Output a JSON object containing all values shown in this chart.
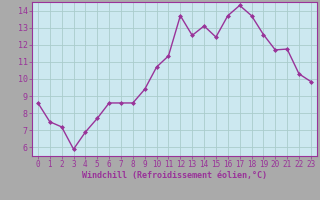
{
  "x": [
    0,
    1,
    2,
    3,
    4,
    5,
    6,
    7,
    8,
    9,
    10,
    11,
    12,
    13,
    14,
    15,
    16,
    17,
    18,
    19,
    20,
    21,
    22,
    23
  ],
  "y": [
    8.6,
    7.5,
    7.2,
    5.9,
    6.9,
    7.7,
    8.6,
    8.6,
    8.6,
    9.4,
    10.7,
    11.35,
    13.7,
    12.55,
    13.1,
    12.45,
    13.7,
    14.3,
    13.7,
    12.6,
    11.7,
    11.75,
    10.3,
    9.85
  ],
  "line_color": "#993399",
  "marker": "D",
  "marker_size": 2.0,
  "bg_color": "#cce8f0",
  "grid_color": "#aacccc",
  "xlabel": "Windchill (Refroidissement éolien,°C)",
  "xlabel_color": "#993399",
  "tick_color": "#993399",
  "xlim": [
    -0.5,
    23.5
  ],
  "ylim": [
    5.5,
    14.5
  ],
  "yticks": [
    6,
    7,
    8,
    9,
    10,
    11,
    12,
    13,
    14
  ],
  "xticks": [
    0,
    1,
    2,
    3,
    4,
    5,
    6,
    7,
    8,
    9,
    10,
    11,
    12,
    13,
    14,
    15,
    16,
    17,
    18,
    19,
    20,
    21,
    22,
    23
  ],
  "fig_bg": "#aaaaaa",
  "linewidth": 1.0,
  "xlabel_fontsize": 6.0,
  "tick_fontsize": 5.5
}
